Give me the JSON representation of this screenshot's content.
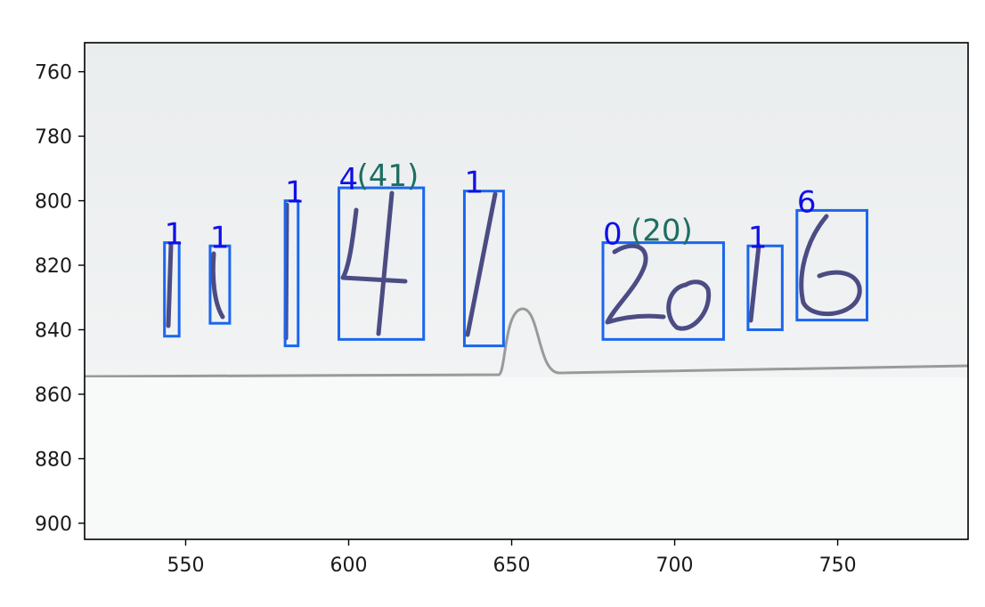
{
  "chart_data": {
    "type": "annotated-image",
    "xlim": [
      519,
      790
    ],
    "ylim": [
      905,
      751
    ],
    "x_ticks": [
      550,
      600,
      650,
      700,
      750
    ],
    "y_ticks": [
      760,
      780,
      800,
      820,
      840,
      860,
      880,
      900
    ],
    "x_tick_labels": [
      "550",
      "600",
      "650",
      "700",
      "750"
    ],
    "y_tick_labels": [
      "760",
      "780",
      "800",
      "820",
      "840",
      "860",
      "880",
      "900"
    ],
    "detections": [
      {
        "label": "1",
        "x0": 543.5,
        "y0": 813,
        "x1": 548,
        "y1": 842
      },
      {
        "label": "1",
        "x0": 557.5,
        "y0": 814,
        "x1": 563.5,
        "y1": 838
      },
      {
        "label": "1",
        "x0": 580.5,
        "y0": 800,
        "x1": 584.5,
        "y1": 845
      },
      {
        "label": "4",
        "x0": 597,
        "y0": 796,
        "x1": 623,
        "y1": 843
      },
      {
        "label": "1",
        "x0": 635.5,
        "y0": 797,
        "x1": 647.5,
        "y1": 845
      },
      {
        "label": "0",
        "x0": 678,
        "y0": 813,
        "x1": 715,
        "y1": 843
      },
      {
        "label": "1",
        "x0": 722.5,
        "y0": 814,
        "x1": 733,
        "y1": 840
      },
      {
        "label": "6",
        "x0": 737.5,
        "y0": 803,
        "x1": 759,
        "y1": 837
      }
    ],
    "group_labels": [
      {
        "text": "(41)",
        "x": 612,
        "y": 796
      },
      {
        "text": "(20)",
        "x": 696,
        "y": 813
      }
    ]
  },
  "colors": {
    "box": "#1a66f0",
    "box_label": "#1010e8",
    "group_label": "#1e6e62",
    "paper": "#eef0f1",
    "ink": "#3a3a78"
  }
}
